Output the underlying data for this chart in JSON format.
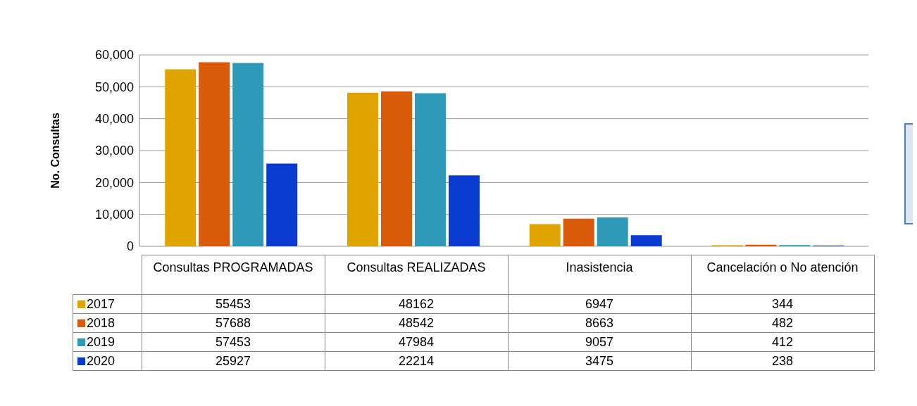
{
  "chart_data": {
    "type": "bar",
    "ylabel": "No. Consultas",
    "categories": [
      "Consultas PROGRAMADAS",
      "Consultas REALIZADAS",
      "Inasistencia",
      "Cancelación o No atención"
    ],
    "series": [
      {
        "name": "2017",
        "color": "#e0a400",
        "values": [
          55453,
          48162,
          6947,
          344
        ]
      },
      {
        "name": "2018",
        "color": "#d85a0a",
        "values": [
          57688,
          48542,
          8663,
          482
        ]
      },
      {
        "name": "2019",
        "color": "#2e9ab8",
        "values": [
          57453,
          47984,
          9057,
          412
        ]
      },
      {
        "name": "2020",
        "color": "#0a3bd0",
        "values": [
          25927,
          22214,
          3475,
          238
        ]
      }
    ],
    "ylim": [
      0,
      60000
    ],
    "yticks": [
      {
        "value": 0,
        "label": "0"
      },
      {
        "value": 10000,
        "label": "10,000"
      },
      {
        "value": 20000,
        "label": "20,000"
      },
      {
        "value": 30000,
        "label": "30,000"
      },
      {
        "value": 40000,
        "label": "40,000"
      },
      {
        "value": 50000,
        "label": "50,000"
      },
      {
        "value": 60000,
        "label": "60,000"
      }
    ],
    "grid": "y",
    "legend": "bottom",
    "data_labels": true
  }
}
